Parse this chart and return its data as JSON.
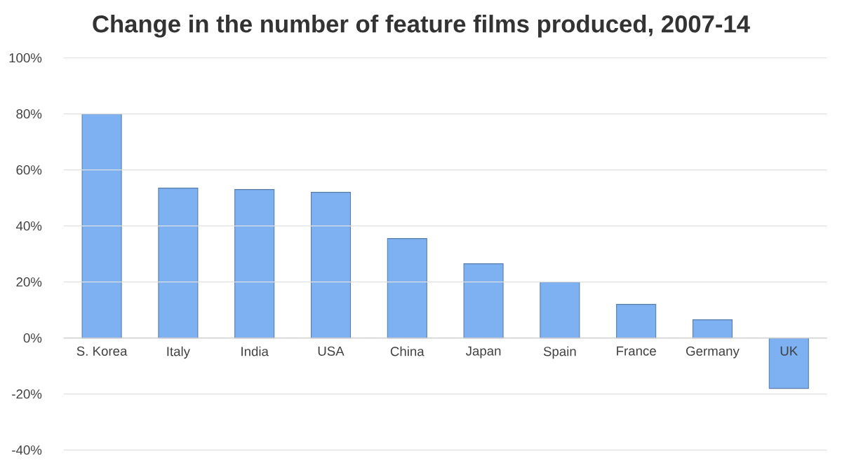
{
  "chart_data": {
    "type": "bar",
    "title": "Change in the number of feature films produced, 2007-14",
    "categories": [
      "S. Korea",
      "Italy",
      "India",
      "USA",
      "China",
      "Japan",
      "Spain",
      "France",
      "Germany",
      "UK"
    ],
    "values": [
      80,
      53.5,
      53,
      52,
      35.5,
      26.5,
      20,
      12,
      6.5,
      -18
    ],
    "color": "#7eb1f2",
    "ylim": [
      -40,
      100
    ],
    "yticks": [
      {
        "value": -40,
        "label": "-40%"
      },
      {
        "value": -20,
        "label": "-20%"
      },
      {
        "value": 0,
        "label": "0%"
      },
      {
        "value": 20,
        "label": "20%"
      },
      {
        "value": 40,
        "label": "40%"
      },
      {
        "value": 60,
        "label": "60%"
      },
      {
        "value": 80,
        "label": "80%"
      },
      {
        "value": 100,
        "label": "100%"
      }
    ],
    "grid": "y"
  }
}
